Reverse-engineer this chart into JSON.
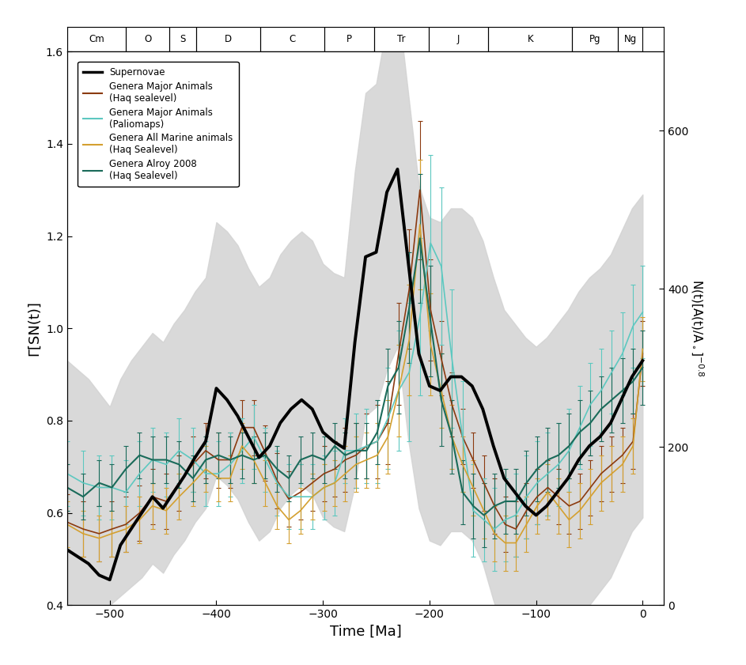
{
  "xlabel": "Time [Ma]",
  "ylabel_left": "Γ[SN(t)]",
  "ylabel_right": "N(t)[A(t)/A₀]⁻⁰⋅⁸",
  "xlim": [
    -540,
    20
  ],
  "ylim_left": [
    0.4,
    1.6
  ],
  "ylim_right": [
    0,
    700
  ],
  "xticks": [
    -500,
    -400,
    -300,
    -200,
    -100,
    0
  ],
  "yticks_left": [
    0.4,
    0.6,
    0.8,
    1.0,
    1.2,
    1.4,
    1.6
  ],
  "yticks_right": [
    0,
    200,
    400,
    600
  ],
  "geo_periods": [
    {
      "name": "Cm",
      "start": -540,
      "end": -485
    },
    {
      "name": "O",
      "start": -485,
      "end": -444
    },
    {
      "name": "S",
      "start": -444,
      "end": -419
    },
    {
      "name": "D",
      "start": -419,
      "end": -359
    },
    {
      "name": "C",
      "start": -359,
      "end": -299
    },
    {
      "name": "P",
      "start": -299,
      "end": -252
    },
    {
      "name": "Tr",
      "start": -252,
      "end": -201
    },
    {
      "name": "J",
      "start": -201,
      "end": -145
    },
    {
      "name": "K",
      "start": -145,
      "end": -66
    },
    {
      "name": "Pg",
      "start": -66,
      "end": -23
    },
    {
      "name": "Ng",
      "start": -23,
      "end": 0
    }
  ],
  "colors": {
    "supernovae": "#000000",
    "haq_major": "#8B3A10",
    "paliomaps_major": "#5DC8C0",
    "haq_all_marine": "#D4A030",
    "alroy_haq": "#1A6B5A"
  },
  "sn_x": [
    -540,
    -530,
    -520,
    -510,
    -500,
    -490,
    -480,
    -470,
    -460,
    -450,
    -440,
    -430,
    -420,
    -410,
    -400,
    -390,
    -380,
    -370,
    -360,
    -350,
    -340,
    -330,
    -320,
    -310,
    -300,
    -290,
    -280,
    -270,
    -260,
    -250,
    -240,
    -230,
    -220,
    -210,
    -200,
    -190,
    -180,
    -170,
    -160,
    -150,
    -140,
    -130,
    -120,
    -110,
    -100,
    -90,
    -80,
    -70,
    -60,
    -50,
    -40,
    -30,
    -20,
    -10,
    0
  ],
  "sn_y": [
    0.52,
    0.505,
    0.49,
    0.465,
    0.455,
    0.53,
    0.565,
    0.6,
    0.635,
    0.61,
    0.645,
    0.68,
    0.72,
    0.755,
    0.87,
    0.845,
    0.81,
    0.765,
    0.72,
    0.745,
    0.795,
    0.825,
    0.845,
    0.825,
    0.775,
    0.755,
    0.74,
    0.97,
    1.155,
    1.165,
    1.295,
    1.345,
    1.145,
    0.945,
    0.875,
    0.865,
    0.895,
    0.895,
    0.875,
    0.825,
    0.745,
    0.675,
    0.645,
    0.615,
    0.595,
    0.615,
    0.645,
    0.675,
    0.715,
    0.745,
    0.765,
    0.795,
    0.845,
    0.895,
    0.93
  ],
  "sn_shade_upper": [
    0.93,
    0.91,
    0.89,
    0.86,
    0.83,
    0.89,
    0.93,
    0.96,
    0.99,
    0.97,
    1.01,
    1.04,
    1.08,
    1.11,
    1.23,
    1.21,
    1.18,
    1.13,
    1.09,
    1.11,
    1.16,
    1.19,
    1.21,
    1.19,
    1.14,
    1.12,
    1.11,
    1.34,
    1.51,
    1.53,
    1.66,
    1.71,
    1.51,
    1.31,
    1.24,
    1.23,
    1.26,
    1.26,
    1.24,
    1.19,
    1.11,
    1.04,
    1.01,
    0.98,
    0.96,
    0.98,
    1.01,
    1.04,
    1.08,
    1.11,
    1.13,
    1.16,
    1.21,
    1.26,
    1.29
  ],
  "sn_shade_lower": [
    0.4,
    0.4,
    0.4,
    0.4,
    0.4,
    0.42,
    0.44,
    0.46,
    0.49,
    0.47,
    0.51,
    0.54,
    0.58,
    0.61,
    0.68,
    0.66,
    0.63,
    0.58,
    0.54,
    0.56,
    0.61,
    0.64,
    0.66,
    0.64,
    0.59,
    0.57,
    0.56,
    0.66,
    0.81,
    0.83,
    0.91,
    0.96,
    0.76,
    0.61,
    0.54,
    0.53,
    0.56,
    0.56,
    0.54,
    0.49,
    0.41,
    0.34,
    0.31,
    0.28,
    0.4,
    0.4,
    0.4,
    0.4,
    0.4,
    0.4,
    0.43,
    0.46,
    0.51,
    0.56,
    0.59
  ],
  "haq_major_x": [
    -540,
    -525,
    -510,
    -498,
    -485,
    -472,
    -460,
    -447,
    -435,
    -422,
    -410,
    -398,
    -387,
    -376,
    -365,
    -354,
    -343,
    -332,
    -321,
    -310,
    -299,
    -289,
    -279,
    -269,
    -259,
    -249,
    -239,
    -229,
    -219,
    -209,
    -199,
    -189,
    -179,
    -169,
    -159,
    -149,
    -139,
    -129,
    -119,
    -109,
    -99,
    -89,
    -79,
    -69,
    -59,
    -49,
    -39,
    -29,
    -19,
    -9,
    0
  ],
  "haq_major_y": [
    0.58,
    0.565,
    0.555,
    0.565,
    0.575,
    0.6,
    0.635,
    0.625,
    0.665,
    0.705,
    0.735,
    0.715,
    0.715,
    0.785,
    0.785,
    0.73,
    0.67,
    0.63,
    0.645,
    0.665,
    0.685,
    0.695,
    0.715,
    0.725,
    0.745,
    0.755,
    0.795,
    0.945,
    1.085,
    1.3,
    1.04,
    0.935,
    0.835,
    0.765,
    0.715,
    0.665,
    0.615,
    0.575,
    0.565,
    0.605,
    0.635,
    0.655,
    0.635,
    0.615,
    0.625,
    0.655,
    0.685,
    0.705,
    0.725,
    0.755,
    0.945
  ],
  "haq_major_yerr": [
    0.06,
    0.06,
    0.06,
    0.06,
    0.06,
    0.06,
    0.06,
    0.06,
    0.06,
    0.06,
    0.06,
    0.06,
    0.06,
    0.06,
    0.06,
    0.06,
    0.06,
    0.06,
    0.06,
    0.06,
    0.06,
    0.06,
    0.07,
    0.07,
    0.07,
    0.08,
    0.09,
    0.11,
    0.13,
    0.15,
    0.11,
    0.08,
    0.07,
    0.06,
    0.06,
    0.06,
    0.06,
    0.06,
    0.06,
    0.06,
    0.06,
    0.06,
    0.06,
    0.06,
    0.06,
    0.06,
    0.06,
    0.06,
    0.06,
    0.06,
    0.07
  ],
  "paliomaps_x": [
    -540,
    -525,
    -510,
    -498,
    -485,
    -472,
    -460,
    -447,
    -435,
    -422,
    -410,
    -398,
    -387,
    -376,
    -365,
    -354,
    -343,
    -332,
    -321,
    -310,
    -299,
    -289,
    -279,
    -269,
    -259,
    -249,
    -239,
    -229,
    -219,
    -209,
    -199,
    -189,
    -179,
    -169,
    -159,
    -149,
    -139,
    -129,
    -119,
    -109,
    -99,
    -89,
    -79,
    -69,
    -59,
    -49,
    -39,
    -29,
    -19,
    -9,
    0
  ],
  "paliomaps_y": [
    0.685,
    0.665,
    0.655,
    0.655,
    0.645,
    0.685,
    0.715,
    0.705,
    0.735,
    0.715,
    0.685,
    0.685,
    0.705,
    0.735,
    0.765,
    0.715,
    0.665,
    0.635,
    0.635,
    0.635,
    0.655,
    0.665,
    0.735,
    0.735,
    0.745,
    0.755,
    0.805,
    0.865,
    0.905,
    1.025,
    1.185,
    1.135,
    0.935,
    0.765,
    0.605,
    0.585,
    0.565,
    0.585,
    0.595,
    0.635,
    0.665,
    0.685,
    0.705,
    0.735,
    0.785,
    0.835,
    0.865,
    0.905,
    0.945,
    1.005,
    1.035
  ],
  "paliomaps_yerr": [
    0.07,
    0.07,
    0.07,
    0.07,
    0.07,
    0.07,
    0.07,
    0.07,
    0.07,
    0.07,
    0.07,
    0.07,
    0.07,
    0.07,
    0.07,
    0.07,
    0.07,
    0.07,
    0.07,
    0.07,
    0.07,
    0.07,
    0.07,
    0.08,
    0.08,
    0.09,
    0.11,
    0.13,
    0.15,
    0.17,
    0.19,
    0.17,
    0.15,
    0.12,
    0.1,
    0.09,
    0.09,
    0.09,
    0.09,
    0.09,
    0.09,
    0.09,
    0.09,
    0.09,
    0.09,
    0.09,
    0.09,
    0.09,
    0.09,
    0.09,
    0.1
  ],
  "haq_marine_x": [
    -540,
    -525,
    -510,
    -498,
    -485,
    -472,
    -460,
    -447,
    -435,
    -422,
    -410,
    -398,
    -387,
    -376,
    -365,
    -354,
    -343,
    -332,
    -321,
    -310,
    -299,
    -289,
    -279,
    -269,
    -259,
    -249,
    -239,
    -229,
    -219,
    -209,
    -199,
    -189,
    -179,
    -169,
    -159,
    -149,
    -139,
    -129,
    -119,
    -109,
    -99,
    -89,
    -79,
    -69,
    -59,
    -49,
    -39,
    -29,
    -19,
    -9,
    0
  ],
  "haq_marine_y": [
    0.575,
    0.555,
    0.545,
    0.555,
    0.565,
    0.585,
    0.615,
    0.605,
    0.635,
    0.665,
    0.695,
    0.675,
    0.675,
    0.745,
    0.715,
    0.665,
    0.615,
    0.585,
    0.605,
    0.635,
    0.655,
    0.665,
    0.685,
    0.705,
    0.715,
    0.725,
    0.765,
    0.865,
    0.975,
    1.225,
    0.965,
    0.865,
    0.765,
    0.705,
    0.655,
    0.605,
    0.555,
    0.535,
    0.535,
    0.575,
    0.615,
    0.645,
    0.615,
    0.585,
    0.605,
    0.635,
    0.665,
    0.685,
    0.705,
    0.745,
    0.955
  ],
  "haq_marine_yerr": [
    0.05,
    0.05,
    0.05,
    0.05,
    0.05,
    0.05,
    0.05,
    0.05,
    0.05,
    0.05,
    0.05,
    0.05,
    0.05,
    0.05,
    0.05,
    0.05,
    0.05,
    0.05,
    0.05,
    0.05,
    0.05,
    0.05,
    0.06,
    0.06,
    0.06,
    0.07,
    0.08,
    0.1,
    0.12,
    0.14,
    0.11,
    0.08,
    0.07,
    0.06,
    0.06,
    0.06,
    0.06,
    0.06,
    0.06,
    0.06,
    0.06,
    0.06,
    0.06,
    0.06,
    0.06,
    0.06,
    0.06,
    0.06,
    0.06,
    0.06,
    0.07
  ],
  "alroy_x": [
    -540,
    -525,
    -510,
    -498,
    -485,
    -472,
    -460,
    -447,
    -435,
    -422,
    -410,
    -398,
    -387,
    -376,
    -365,
    -354,
    -343,
    -332,
    -321,
    -310,
    -299,
    -289,
    -279,
    -269,
    -259,
    -249,
    -239,
    -229,
    -219,
    -209,
    -199,
    -189,
    -179,
    -169,
    -159,
    -149,
    -139,
    -129,
    -119,
    -109,
    -99,
    -89,
    -79,
    -69,
    -59,
    -49,
    -39,
    -29,
    -19,
    -9,
    0
  ],
  "alroy_y": [
    0.655,
    0.635,
    0.665,
    0.655,
    0.695,
    0.725,
    0.715,
    0.715,
    0.705,
    0.675,
    0.715,
    0.725,
    0.715,
    0.725,
    0.715,
    0.725,
    0.695,
    0.675,
    0.715,
    0.725,
    0.715,
    0.745,
    0.725,
    0.735,
    0.735,
    0.775,
    0.875,
    0.915,
    1.045,
    1.195,
    1.015,
    0.845,
    0.765,
    0.645,
    0.615,
    0.595,
    0.615,
    0.625,
    0.625,
    0.665,
    0.695,
    0.715,
    0.725,
    0.745,
    0.775,
    0.795,
    0.825,
    0.845,
    0.865,
    0.885,
    0.915
  ],
  "alroy_yerr": [
    0.05,
    0.05,
    0.05,
    0.05,
    0.05,
    0.05,
    0.05,
    0.05,
    0.05,
    0.05,
    0.05,
    0.05,
    0.05,
    0.05,
    0.05,
    0.05,
    0.05,
    0.05,
    0.05,
    0.05,
    0.05,
    0.05,
    0.05,
    0.06,
    0.06,
    0.07,
    0.08,
    0.1,
    0.12,
    0.14,
    0.12,
    0.1,
    0.08,
    0.07,
    0.07,
    0.07,
    0.07,
    0.07,
    0.07,
    0.07,
    0.07,
    0.07,
    0.07,
    0.07,
    0.07,
    0.07,
    0.07,
    0.07,
    0.07,
    0.07,
    0.08
  ]
}
